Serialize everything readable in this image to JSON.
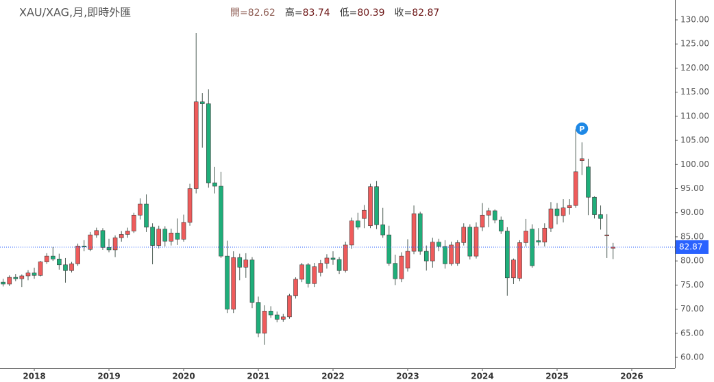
{
  "chart_data": {
    "type": "candlestick",
    "title": "XAU/XAG,月,即時外匯",
    "ohlc_labels": [
      "開=",
      "高=",
      "低=",
      "收="
    ],
    "annotation": "P",
    "up_color": "#ef5b5b",
    "down_color": "#1fae7a",
    "price_line_color": "#2962ff",
    "xlim": [
      2017.541,
      2026.578
    ],
    "xticks": [
      2018,
      2019,
      2020,
      2021,
      2022,
      2023,
      2024,
      2025,
      2026
    ],
    "ylim": [
      57.73,
      134.12
    ],
    "yticks": [
      {
        "value": 60,
        "label": "60.00"
      },
      {
        "value": 65,
        "label": "65.00"
      },
      {
        "value": 70,
        "label": "70.00"
      },
      {
        "value": 75,
        "label": "75.00"
      },
      {
        "value": 80,
        "label": "80.00"
      },
      {
        "value": 85,
        "label": "85.00"
      },
      {
        "value": 90,
        "label": "90.00"
      },
      {
        "value": 95,
        "label": "95.00"
      },
      {
        "value": 100,
        "label": "100.00"
      },
      {
        "value": 105,
        "label": "105.00"
      },
      {
        "value": 110,
        "label": "110.00"
      },
      {
        "value": 115,
        "label": "115.00"
      },
      {
        "value": 120,
        "label": "120.00"
      },
      {
        "value": 125,
        "label": "125.00"
      },
      {
        "value": 130,
        "label": "130.00"
      }
    ],
    "x": [
      2017.583,
      2017.667,
      2017.75,
      2017.833,
      2017.917,
      2018,
      2018.083,
      2018.167,
      2018.25,
      2018.333,
      2018.417,
      2018.5,
      2018.583,
      2018.667,
      2018.75,
      2018.833,
      2018.917,
      2019,
      2019.083,
      2019.167,
      2019.25,
      2019.333,
      2019.417,
      2019.5,
      2019.583,
      2019.667,
      2019.75,
      2019.833,
      2019.917,
      2020,
      2020.083,
      2020.167,
      2020.25,
      2020.333,
      2020.417,
      2020.5,
      2020.583,
      2020.667,
      2020.75,
      2020.833,
      2020.917,
      2021,
      2021.083,
      2021.167,
      2021.25,
      2021.333,
      2021.417,
      2021.5,
      2021.583,
      2021.667,
      2021.75,
      2021.833,
      2021.917,
      2022,
      2022.083,
      2022.167,
      2022.25,
      2022.333,
      2022.417,
      2022.5,
      2022.583,
      2022.667,
      2022.75,
      2022.833,
      2022.917,
      2023,
      2023.083,
      2023.167,
      2023.25,
      2023.333,
      2023.417,
      2023.5,
      2023.583,
      2023.667,
      2023.75,
      2023.833,
      2023.917,
      2024,
      2024.083,
      2024.167,
      2024.25,
      2024.333,
      2024.417,
      2024.5,
      2024.583,
      2024.667,
      2024.75,
      2024.833,
      2024.917,
      2025,
      2025.083,
      2025.167,
      2025.25,
      2025.333,
      2025.417,
      2025.5,
      2025.583,
      2025.667,
      2025.75
    ],
    "open": [
      75.6,
      75.2,
      76.6,
      76.3,
      76.9,
      77.5,
      77.0,
      79.8,
      81.0,
      80.4,
      79.2,
      78.0,
      79.4,
      83.1,
      82.4,
      85.4,
      86.3,
      82.8,
      82.3,
      84.8,
      85.5,
      86.2,
      89.5,
      91.8,
      87.0,
      83.2,
      86.6,
      84.1,
      85.8,
      84.5,
      88.0,
      95.0,
      113.0,
      112.6,
      96.2,
      95.5,
      81.0,
      70.0,
      80.7,
      78.7,
      80.2,
      71.4,
      65.0,
      69.6,
      68.8,
      67.9,
      68.4,
      72.8,
      76.2,
      79.2,
      75.3,
      77.6,
      79.5,
      80.6,
      80.3,
      78.0,
      83.3,
      88.3,
      88.8,
      87.3,
      95.4,
      87.5,
      85.4,
      79.5,
      76.3,
      78.5,
      82.0,
      89.8,
      82.0,
      80.0,
      83.9,
      83.0,
      79.4,
      79.5,
      83.8,
      87.0,
      81.0,
      87.0,
      89.5,
      90.4,
      88.5,
      86.2,
      76.5,
      76.4,
      83.8,
      86.6,
      84.2,
      83.9,
      86.8,
      90.8,
      89.4,
      91.0,
      91.5,
      100.8,
      99.5,
      93.2,
      89.6,
      85.2,
      82.62
    ],
    "high": [
      76.3,
      77.0,
      77.3,
      77.2,
      78.1,
      78.6,
      80.0,
      81.6,
      82.9,
      81.5,
      80.6,
      79.8,
      83.6,
      84.3,
      86.0,
      86.9,
      86.8,
      84.6,
      85.3,
      86.2,
      86.9,
      90.0,
      93.0,
      93.8,
      87.8,
      87.3,
      87.2,
      86.7,
      88.8,
      89.6,
      96.0,
      127.3,
      114.8,
      115.6,
      99.5,
      98.5,
      84.2,
      82.0,
      81.5,
      81.6,
      80.8,
      72.6,
      70.8,
      70.6,
      69.5,
      69.0,
      73.2,
      76.6,
      79.6,
      79.6,
      79.6,
      80.2,
      81.4,
      82.0,
      80.8,
      84.0,
      89.0,
      90.0,
      91.6,
      96.0,
      96.6,
      91.0,
      87.3,
      81.3,
      81.8,
      84.5,
      91.5,
      90.2,
      83.2,
      84.8,
      84.6,
      84.3,
      84.0,
      84.3,
      87.8,
      87.6,
      88.0,
      92.0,
      91.0,
      90.7,
      89.2,
      87.0,
      80.5,
      84.3,
      88.7,
      87.6,
      86.8,
      87.8,
      92.2,
      92.0,
      92.8,
      92.8,
      107.3,
      104.6,
      101.2,
      93.4,
      91.5,
      89.7,
      83.74
    ],
    "low": [
      74.7,
      74.8,
      75.8,
      74.6,
      76.0,
      76.3,
      76.8,
      79.4,
      80.0,
      78.2,
      75.5,
      77.6,
      79.0,
      82.0,
      82.0,
      84.8,
      82.3,
      81.8,
      80.8,
      84.0,
      84.8,
      85.8,
      88.6,
      86.0,
      79.3,
      82.6,
      83.0,
      83.2,
      83.3,
      84.0,
      87.3,
      94.0,
      103.5,
      95.2,
      94.0,
      80.6,
      69.2,
      69.2,
      76.0,
      76.5,
      70.2,
      64.2,
      62.6,
      68.2,
      67.3,
      67.4,
      68.0,
      72.2,
      75.6,
      74.5,
      74.6,
      76.8,
      78.4,
      79.2,
      77.3,
      77.6,
      82.5,
      86.5,
      86.8,
      86.8,
      86.6,
      84.8,
      79.0,
      75.0,
      75.6,
      77.8,
      81.4,
      81.3,
      78.0,
      78.6,
      82.0,
      78.4,
      79.0,
      79.0,
      83.2,
      80.3,
      80.5,
      86.2,
      87.0,
      87.8,
      85.6,
      72.8,
      75.2,
      75.8,
      83.0,
      78.6,
      83.2,
      83.0,
      86.0,
      87.6,
      88.0,
      89.6,
      91.0,
      97.8,
      89.5,
      88.8,
      86.5,
      80.6,
      80.39
    ],
    "close": [
      75.2,
      76.6,
      76.3,
      76.9,
      77.5,
      77.0,
      79.8,
      81.0,
      80.4,
      79.2,
      78.0,
      79.4,
      83.1,
      82.9,
      85.4,
      86.3,
      82.8,
      82.3,
      84.8,
      85.5,
      86.2,
      89.5,
      91.8,
      87.0,
      83.2,
      86.6,
      84.1,
      85.8,
      84.5,
      88.0,
      95.0,
      113.0,
      112.6,
      96.2,
      95.5,
      81.0,
      70.0,
      80.7,
      78.7,
      80.2,
      71.4,
      65.0,
      69.6,
      68.8,
      67.9,
      68.4,
      72.8,
      76.2,
      79.2,
      75.3,
      78.8,
      79.5,
      80.6,
      80.3,
      78.0,
      83.3,
      88.3,
      87.0,
      90.5,
      95.4,
      87.5,
      85.4,
      79.5,
      76.3,
      81.0,
      82.0,
      89.8,
      82.0,
      80.0,
      83.9,
      83.0,
      79.4,
      83.3,
      83.8,
      87.0,
      81.0,
      87.0,
      89.5,
      90.4,
      88.5,
      86.2,
      76.5,
      80.2,
      83.8,
      86.2,
      79.0,
      83.9,
      86.8,
      90.8,
      89.4,
      91.0,
      91.5,
      98.5,
      101.2,
      93.2,
      89.6,
      88.8,
      85.4,
      82.87
    ]
  }
}
